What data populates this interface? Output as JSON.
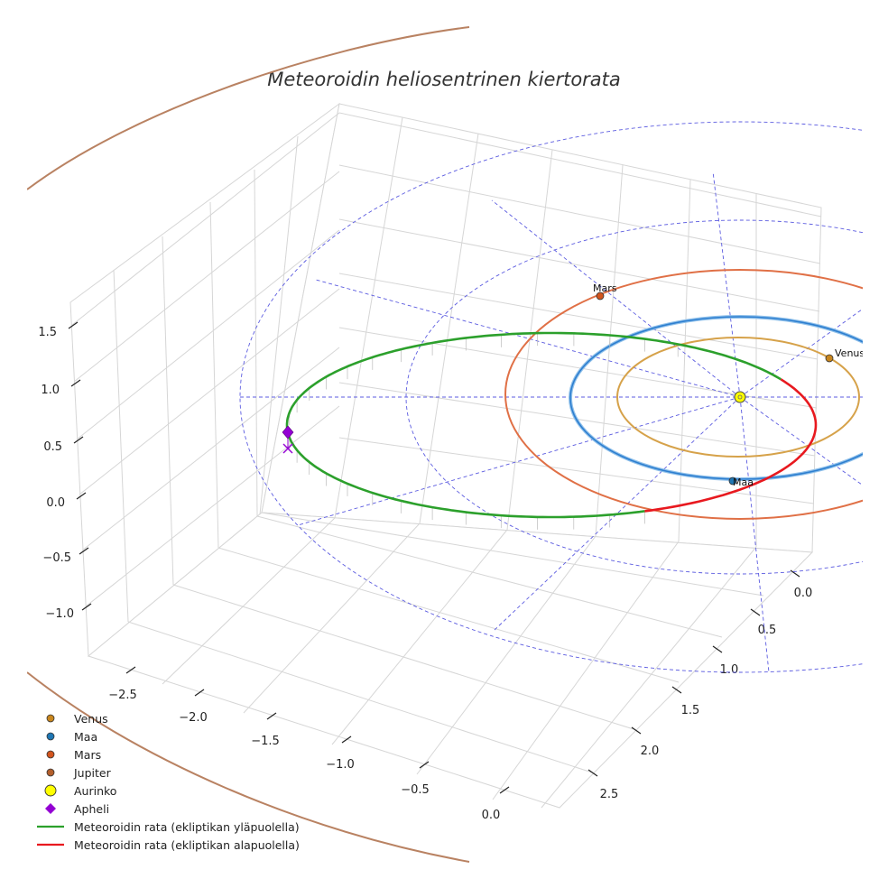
{
  "chart_data": {
    "type": "line",
    "title": "Meteoroidin heliosentrinen kiertorata",
    "xlabel": "",
    "ylabel": "",
    "zlabel": "",
    "x_ticks": [
      "−2.5",
      "−2.0",
      "−1.5",
      "−1.0",
      "−0.5",
      "0.0"
    ],
    "y_ticks": [
      "0.0",
      "0.5",
      "1.0",
      "1.5",
      "2.0",
      "2.5"
    ],
    "z_ticks": [
      "1.5",
      "1.0",
      "0.5",
      "0.0",
      "−0.5",
      "−1.0"
    ],
    "grid": true,
    "legend_position": "bottom-left",
    "bodies": [
      {
        "name": "Venus",
        "label": "Venus",
        "a": 0.72,
        "color": "#c8861e",
        "orbit_color": "#d6a24a"
      },
      {
        "name": "Maa",
        "label": "Maa",
        "a": 1.0,
        "color": "#1f77b4",
        "orbit_color": "#3a87d6"
      },
      {
        "name": "Mars",
        "label": "Mars",
        "a": 1.52,
        "color": "#d2551e",
        "orbit_color": "#e07046"
      },
      {
        "name": "Jupiter",
        "label": "",
        "a": 5.2,
        "color": "#b35f2c",
        "orbit_color": "#b98262"
      }
    ],
    "sun": {
      "name": "Aurinko",
      "x": 0,
      "y": 0,
      "z": 0,
      "color": "#ffff00"
    },
    "aphelion": {
      "name": "Apheli",
      "approx_position": [
        -2.7,
        0.4,
        0.5
      ],
      "color": "#9400d3"
    },
    "meteoroid_orbit": {
      "approx_semimajor_axis": 1.9,
      "approx_eccentricity": 0.47,
      "approx_inclination_deg": 10,
      "series": [
        {
          "name": "Meteoroidin rata (ekliptikan yläpuolella)",
          "color": "#2ca02c"
        },
        {
          "name": "Meteoroidin rata (ekliptikan alapuolella)",
          "color": "#e8191f"
        }
      ]
    },
    "legend": [
      {
        "label": "Venus",
        "marker": "circle",
        "color": "#c8861e"
      },
      {
        "label": "Maa",
        "marker": "circle",
        "color": "#1f77b4"
      },
      {
        "label": "Mars",
        "marker": "circle",
        "color": "#d2551e"
      },
      {
        "label": "Jupiter",
        "marker": "circle",
        "color": "#b35f2c"
      },
      {
        "label": "Aurinko",
        "marker": "big-circle",
        "color": "#ffff00"
      },
      {
        "label": "Apheli",
        "marker": "diamond",
        "color": "#9400d3"
      },
      {
        "label": "Meteoroidin rata (ekliptikan yläpuolella)",
        "marker": "line",
        "color": "#2ca02c"
      },
      {
        "label": "Meteoroidin rata (ekliptikan alapuolella)",
        "marker": "line",
        "color": "#e8191f"
      }
    ]
  }
}
